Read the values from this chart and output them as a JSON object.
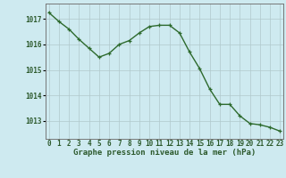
{
  "x": [
    0,
    1,
    2,
    3,
    4,
    5,
    6,
    7,
    8,
    9,
    10,
    11,
    12,
    13,
    14,
    15,
    16,
    17,
    18,
    19,
    20,
    21,
    22,
    23
  ],
  "y": [
    1017.25,
    1016.9,
    1016.6,
    1016.2,
    1015.85,
    1015.5,
    1015.65,
    1016.0,
    1016.15,
    1016.45,
    1016.7,
    1016.75,
    1016.75,
    1016.45,
    1015.7,
    1015.05,
    1014.25,
    1013.65,
    1013.65,
    1013.2,
    1012.9,
    1012.85,
    1012.75,
    1012.6
  ],
  "line_color": "#2d6a2d",
  "marker": "+",
  "marker_size": 3,
  "bg_color": "#ceeaf0",
  "grid_color": "#b0c8cc",
  "ylim_min": 1012.3,
  "ylim_max": 1017.6,
  "yticks": [
    1013,
    1014,
    1015,
    1016,
    1017
  ],
  "xtick_labels": [
    "0",
    "1",
    "2",
    "3",
    "4",
    "5",
    "6",
    "7",
    "8",
    "9",
    "10",
    "11",
    "12",
    "13",
    "14",
    "15",
    "16",
    "17",
    "18",
    "19",
    "20",
    "21",
    "22",
    "23"
  ],
  "xlabel": "Graphe pression niveau de la mer (hPa)",
  "xlabel_fontsize": 6.5,
  "tick_fontsize": 5.5,
  "label_color": "#2d5a2d",
  "line_width": 1.0,
  "figsize": [
    3.2,
    2.0
  ],
  "dpi": 100
}
